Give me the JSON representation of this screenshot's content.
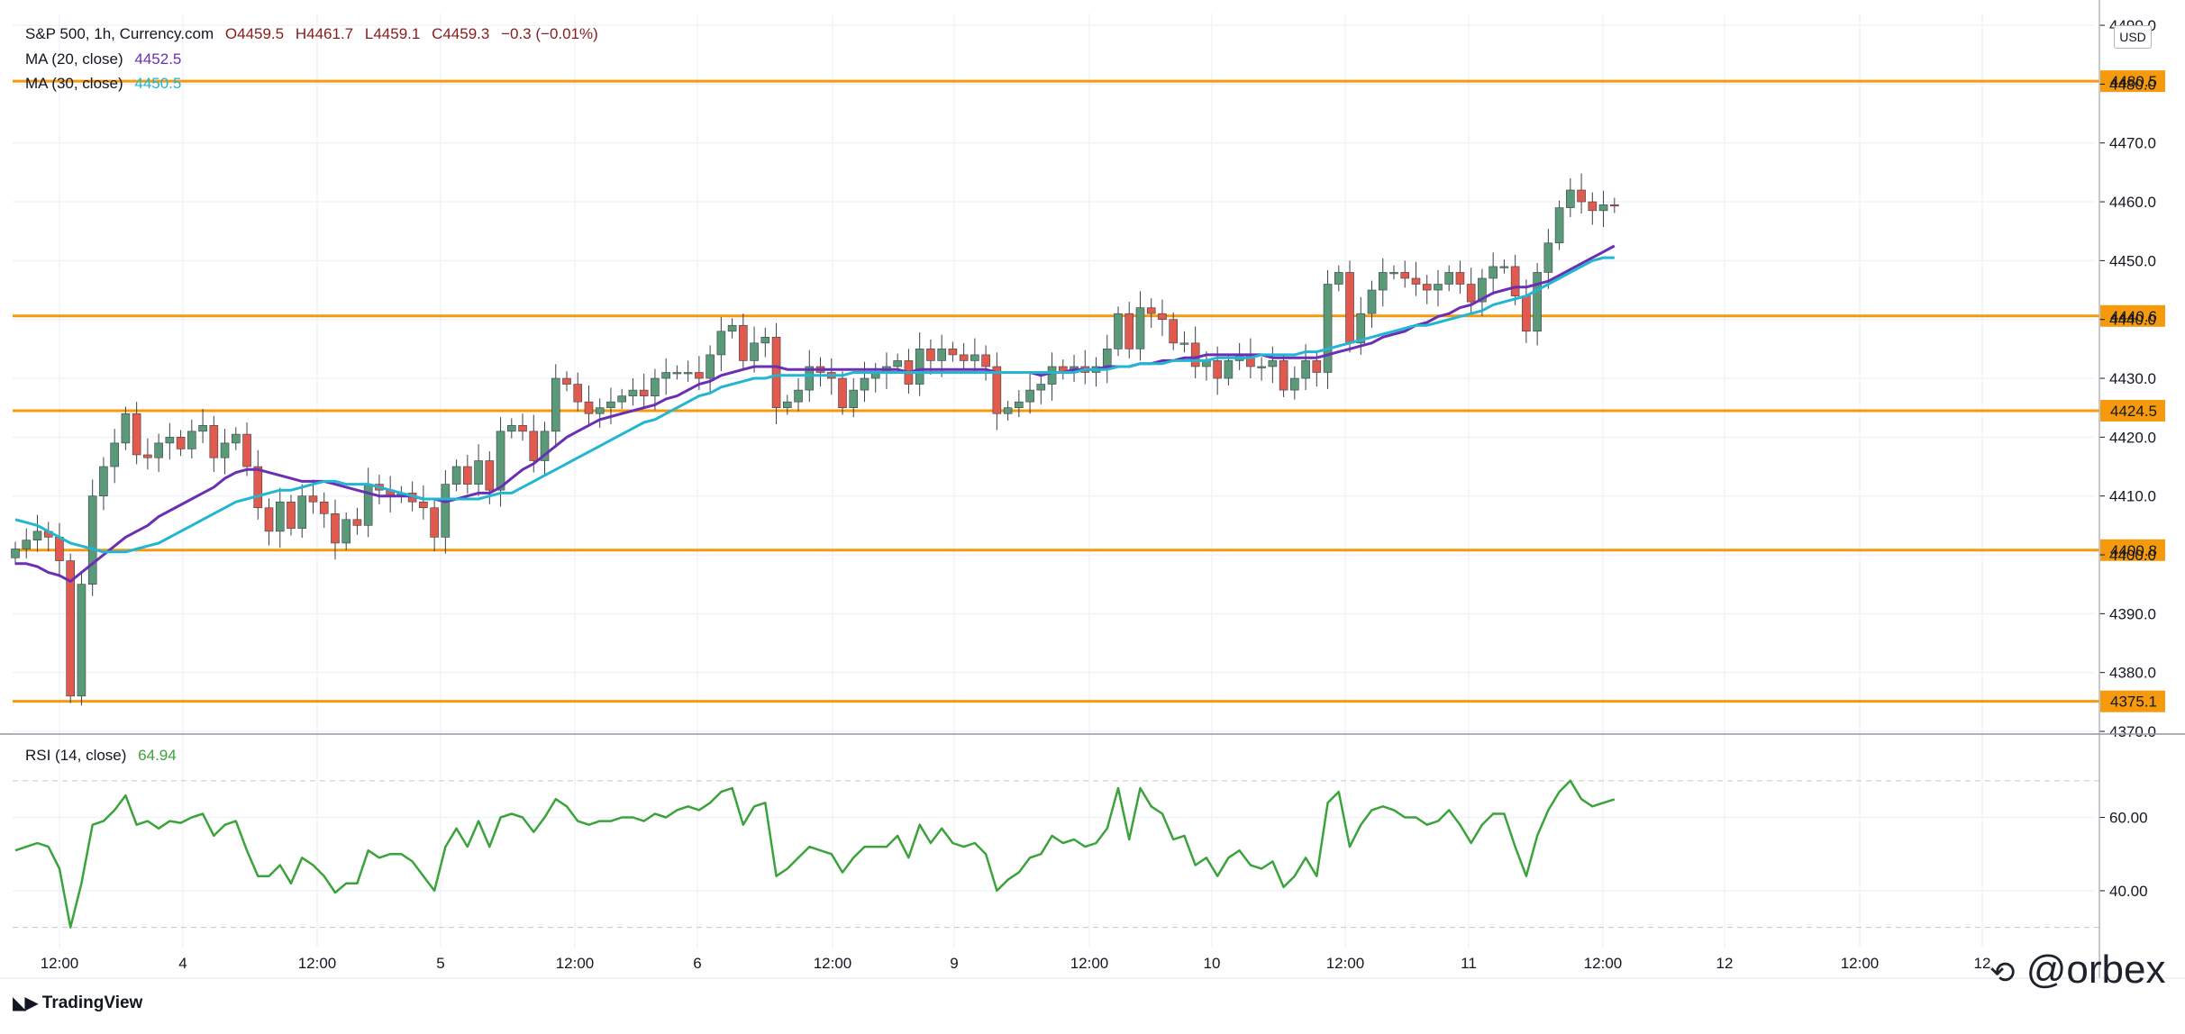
{
  "header": {
    "symbol": "S&P 500, 1h, Currency.com",
    "open_label": "O",
    "open": "4459.5",
    "high_label": "H",
    "high": "4461.7",
    "low_label": "L",
    "low": "4459.1",
    "close_label": "C",
    "close": "4459.3",
    "change": "−0.3 (−0.01%)"
  },
  "legend": {
    "ma20_label": "MA (20, close)",
    "ma20_value": "4452.5",
    "ma30_label": "MA (30, close)",
    "ma30_value": "4450.5",
    "rsi_label": "RSI (14, close)",
    "rsi_value": "64.94"
  },
  "currency": "USD",
  "branding": {
    "logo_text": "TradingView",
    "watermark": "@orbex"
  },
  "colors": {
    "up": "#5b9a78",
    "down": "#e05a4e",
    "ma20": "#6a2fb3",
    "ma30": "#22b6d2",
    "rsi": "#3ba33b",
    "level": "#f59a0c",
    "grid": "#f0f3fa"
  },
  "chart_data": {
    "type": "candlestick",
    "timeframe": "1h",
    "price_axis": {
      "ticks": [
        4370,
        4380,
        4390,
        4400,
        4410,
        4420,
        4430,
        4440,
        4450,
        4460,
        4470,
        4480,
        4490
      ],
      "range": [
        4370,
        4492
      ]
    },
    "time_axis": {
      "labels": [
        "12:00",
        "4",
        "12:00",
        "5",
        "12:00",
        "6",
        "12:00",
        "9",
        "12:00",
        "10",
        "12:00",
        "11",
        "12:00",
        "12",
        "12:00",
        "12"
      ]
    },
    "horizontal_levels": [
      "4480.5",
      "4440.6",
      "4424.5",
      "4400.8",
      "4375.1"
    ],
    "rsi_axis": {
      "ticks": [
        "60.00",
        "40.00"
      ],
      "range": [
        25,
        82
      ],
      "bands": [
        70,
        30
      ]
    },
    "closes": [
      4401.0,
      4402.5,
      4404.0,
      4403.0,
      4399.0,
      4376.0,
      4395.0,
      4410.0,
      4415.0,
      4419.0,
      4424.0,
      4417.0,
      4416.5,
      4419.0,
      4420.0,
      4418.0,
      4421.0,
      4422.0,
      4416.5,
      4419.0,
      4420.5,
      4415.0,
      4408.0,
      4404.0,
      4409.0,
      4404.5,
      4410.0,
      4409.0,
      4407.0,
      4402.0,
      4406.0,
      4405.0,
      4412.0,
      4411.0,
      4410.0,
      4410.5,
      4409.0,
      4408.0,
      4403.0,
      4412.0,
      4415.0,
      4412.0,
      4416.0,
      4411.0,
      4421.0,
      4422.0,
      4421.0,
      4416.0,
      4421.0,
      4430.0,
      4429.0,
      4426.0,
      4424.0,
      4425.0,
      4426.0,
      4427.0,
      4428.0,
      4427.0,
      4430.0,
      4431.0,
      4431.0,
      4431.0,
      4430.0,
      4434.0,
      4438.0,
      4439.0,
      4433.0,
      4436.0,
      4437.0,
      4425.0,
      4426.0,
      4428.0,
      4432.0,
      4431.0,
      4430.0,
      4425.0,
      4428.0,
      4430.0,
      4431.0,
      4432.0,
      4433.0,
      4429.0,
      4435.0,
      4433.0,
      4435.0,
      4434.0,
      4433.0,
      4434.0,
      4432.0,
      4424.0,
      4425.0,
      4426.0,
      4428.0,
      4429.0,
      4432.0,
      4431.0,
      4432.0,
      4431.0,
      4432.0,
      4435.0,
      4441.0,
      4435.0,
      4442.0,
      4441.0,
      4440.0,
      4436.0,
      4436.0,
      4432.0,
      4433.0,
      4430.0,
      4433.0,
      4434.0,
      4432.0,
      4432.0,
      4433.0,
      4428.0,
      4430.0,
      4433.0,
      4431.0,
      4446.0,
      4448.0,
      4436.0,
      4441.0,
      4445.0,
      4448.0,
      4448.0,
      4447.0,
      4446.0,
      4445.0,
      4446.0,
      4448.0,
      4446.0,
      4443.0,
      4447.0,
      4449.0,
      4449.0,
      4444.0,
      4438.0,
      4448.0,
      4453.0,
      4459.0,
      4462.0,
      4460.0,
      4458.5,
      4459.5,
      4459.3
    ],
    "series": [
      {
        "name": "MA (20, close)",
        "values": [
          4398.5,
          4398.5,
          4398.0,
          4397.0,
          4396.5,
          4395.5,
          4397.0,
          4398.5,
          4400.0,
          4401.5,
          4403.0,
          4404.0,
          4405.0,
          4406.5,
          4407.5,
          4408.5,
          4409.5,
          4410.5,
          4411.5,
          4413.0,
          4414.0,
          4414.5,
          4414.5,
          4414.0,
          4413.5,
          4413.0,
          4412.5,
          4412.5,
          4412.5,
          4412.0,
          4411.5,
          4411.0,
          4410.5,
          4410.0,
          4410.0,
          4410.0,
          4410.0,
          4409.5,
          4409.5,
          4409.0,
          4409.5,
          4410.0,
          4410.5,
          4410.5,
          4411.5,
          4413.0,
          4414.5,
          4415.5,
          4417.0,
          4418.5,
          4420.0,
          4421.0,
          4422.0,
          4423.0,
          4423.5,
          4424.0,
          4424.5,
          4425.0,
          4425.5,
          4426.5,
          4427.0,
          4428.0,
          4429.0,
          4429.5,
          4430.5,
          4431.0,
          4431.5,
          4432.0,
          4432.0,
          4432.0,
          4431.5,
          4431.5,
          4431.5,
          4431.5,
          4431.5,
          4431.5,
          4431.5,
          4431.5,
          4431.5,
          4431.5,
          4431.5,
          4431.0,
          4431.5,
          4431.5,
          4431.5,
          4431.5,
          4431.5,
          4431.5,
          4431.5,
          4431.0,
          4431.0,
          4431.0,
          4431.0,
          4430.5,
          4431.0,
          4431.0,
          4431.5,
          4431.5,
          4431.5,
          4432.0,
          4432.0,
          4432.0,
          4432.5,
          4432.5,
          4433.0,
          4433.0,
          4433.5,
          4433.5,
          4434.0,
          4434.0,
          4434.0,
          4434.0,
          4434.0,
          4434.0,
          4433.5,
          4433.5,
          4433.5,
          4433.5,
          4433.5,
          4434.0,
          4434.5,
          4435.0,
          4435.5,
          4436.0,
          4437.0,
          4437.5,
          4438.0,
          4439.0,
          4439.5,
          4440.5,
          4441.0,
          4442.0,
          4442.5,
          4443.5,
          4444.5,
          4445.0,
          4445.5,
          4445.5,
          4446.0,
          4446.5,
          4447.5,
          4448.5,
          4449.5,
          4450.5,
          4451.5,
          4452.5
        ]
      },
      {
        "name": "MA (30, close)",
        "values": [
          4406.0,
          4405.5,
          4405.0,
          4404.0,
          4403.0,
          4402.0,
          4401.5,
          4401.0,
          4400.5,
          4400.5,
          4400.5,
          4401.0,
          4401.5,
          4402.0,
          4403.0,
          4404.0,
          4405.0,
          4406.0,
          4407.0,
          4408.0,
          4409.0,
          4409.5,
          4410.0,
          4410.5,
          4411.0,
          4411.0,
          4411.5,
          4412.0,
          4412.5,
          4412.5,
          4412.0,
          4412.0,
          4412.0,
          4411.5,
          4411.0,
          4410.5,
          4410.0,
          4409.5,
          4409.5,
          4409.5,
          4409.5,
          4409.5,
          4409.5,
          4410.0,
          4410.5,
          4410.5,
          4411.5,
          4412.5,
          4413.5,
          4414.5,
          4415.5,
          4416.5,
          4417.5,
          4418.5,
          4419.5,
          4420.5,
          4421.5,
          4422.5,
          4423.0,
          4424.0,
          4425.0,
          4426.0,
          4427.0,
          4427.5,
          4428.5,
          4429.0,
          4429.5,
          4430.0,
          4430.0,
          4430.5,
          4430.5,
          4430.5,
          4430.5,
          4430.5,
          4430.5,
          4430.5,
          4431.0,
          4431.0,
          4431.0,
          4431.0,
          4431.0,
          4431.0,
          4431.0,
          4431.0,
          4431.0,
          4431.0,
          4431.0,
          4431.0,
          4431.0,
          4431.0,
          4431.0,
          4431.0,
          4431.0,
          4431.0,
          4431.0,
          4431.0,
          4431.0,
          4431.5,
          4431.5,
          4431.5,
          4432.0,
          4432.0,
          4432.5,
          4432.5,
          4432.5,
          4433.0,
          4433.0,
          4433.0,
          4433.0,
          4433.5,
          4433.5,
          4433.5,
          4433.5,
          4434.0,
          4434.0,
          4434.0,
          4434.0,
          4434.5,
          4434.5,
          4435.0,
          4435.5,
          4436.0,
          4436.5,
          4437.0,
          4437.5,
          4438.0,
          4438.5,
          4439.0,
          4439.0,
          4439.5,
          4440.0,
          4440.5,
          4441.0,
          4441.5,
          4442.5,
          4443.0,
          4443.5,
          4444.0,
          4445.0,
          4446.0,
          4447.0,
          4448.0,
          4449.0,
          4450.0,
          4450.5,
          4450.5
        ]
      },
      {
        "name": "RSI (14, close)",
        "values": [
          51.0,
          52.0,
          53.0,
          52.0,
          46.0,
          30.0,
          42.0,
          58.0,
          59.0,
          62.0,
          66.0,
          58.0,
          59.0,
          57.0,
          59.0,
          58.5,
          60.0,
          61.0,
          55.0,
          58.0,
          59.0,
          51.0,
          44.0,
          44.0,
          47.0,
          42.0,
          49.0,
          47.0,
          44.0,
          39.5,
          42.0,
          42.0,
          51.0,
          49.0,
          50.0,
          50.0,
          48.0,
          44.0,
          40.0,
          52.0,
          57.0,
          52.0,
          59.0,
          52.0,
          60.0,
          61.0,
          60.0,
          56.0,
          60.0,
          65.0,
          63.0,
          59.0,
          58.0,
          59.0,
          59.0,
          60.0,
          60.0,
          59.0,
          61.0,
          60.0,
          62.0,
          63.0,
          62.0,
          64.0,
          67.0,
          68.0,
          58.0,
          63.0,
          64.0,
          44.0,
          46.0,
          49.0,
          52.0,
          51.0,
          50.0,
          45.0,
          49.0,
          52.0,
          52.0,
          52.0,
          55.0,
          49.0,
          58.0,
          53.0,
          57.0,
          53.0,
          52.0,
          53.0,
          50.0,
          40.0,
          43.0,
          45.0,
          49.0,
          50.0,
          55.0,
          53.0,
          54.0,
          52.0,
          53.0,
          57.0,
          68.0,
          54.0,
          68.0,
          63.0,
          61.0,
          54.0,
          55.0,
          47.0,
          49.0,
          44.0,
          49.0,
          51.0,
          47.0,
          46.0,
          48.0,
          41.0,
          44.0,
          49.0,
          44.0,
          64.0,
          67.0,
          52.0,
          58.0,
          62.0,
          63.0,
          62.0,
          60.0,
          60.0,
          58.0,
          59.0,
          62.0,
          58.0,
          53.0,
          58.0,
          61.0,
          61.0,
          52.0,
          44.0,
          55.0,
          62.0,
          67.0,
          70.0,
          65.0,
          63.0,
          64.0,
          64.94
        ]
      }
    ]
  }
}
